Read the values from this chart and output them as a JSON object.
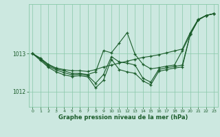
{
  "xlabel": "Graphe pression niveau de la mer (hPa)",
  "background_color": "#cce8e0",
  "grid_color": "#88c8a8",
  "line_color": "#1a5c2a",
  "marker_color": "#1a5c2a",
  "xlim": [
    -0.5,
    23.5
  ],
  "ylim": [
    1011.6,
    1014.3
  ],
  "yticks": [
    1012,
    1013
  ],
  "xticks": [
    0,
    1,
    2,
    3,
    4,
    5,
    6,
    7,
    8,
    9,
    10,
    11,
    12,
    13,
    14,
    15,
    16,
    17,
    18,
    19,
    20,
    21,
    22,
    23
  ],
  "series": [
    [
      1013.0,
      1012.88,
      1012.72,
      1012.62,
      1012.58,
      1012.55,
      1012.55,
      1012.53,
      1012.58,
      1012.65,
      1012.7,
      1012.75,
      1012.8,
      1012.85,
      1012.9,
      1012.93,
      1012.97,
      1013.02,
      1013.07,
      1013.12,
      1013.55,
      1013.9,
      1014.0,
      1014.05
    ],
    [
      1013.0,
      1012.87,
      1012.7,
      1012.6,
      1012.55,
      1012.48,
      1012.48,
      1012.45,
      1012.52,
      1013.08,
      1013.02,
      1013.28,
      1013.55,
      1012.98,
      1012.72,
      1012.6,
      1012.63,
      1012.67,
      1012.7,
      1013.08,
      1013.5,
      1013.88,
      1014.0,
      1014.05
    ],
    [
      1013.0,
      1012.85,
      1012.67,
      1012.57,
      1012.5,
      1012.44,
      1012.46,
      1012.42,
      1012.22,
      1012.45,
      1012.92,
      1012.78,
      1012.75,
      1012.7,
      1012.35,
      1012.25,
      1012.58,
      1012.63,
      1012.66,
      1012.7,
      1013.5,
      1013.88,
      1014.0,
      1014.05
    ],
    [
      1013.0,
      1012.82,
      1012.64,
      1012.52,
      1012.44,
      1012.4,
      1012.42,
      1012.39,
      1012.1,
      1012.3,
      1012.85,
      1012.58,
      1012.52,
      1012.48,
      1012.28,
      1012.18,
      1012.53,
      1012.58,
      1012.62,
      1012.65,
      1013.5,
      1013.88,
      1014.0,
      1014.05
    ]
  ]
}
